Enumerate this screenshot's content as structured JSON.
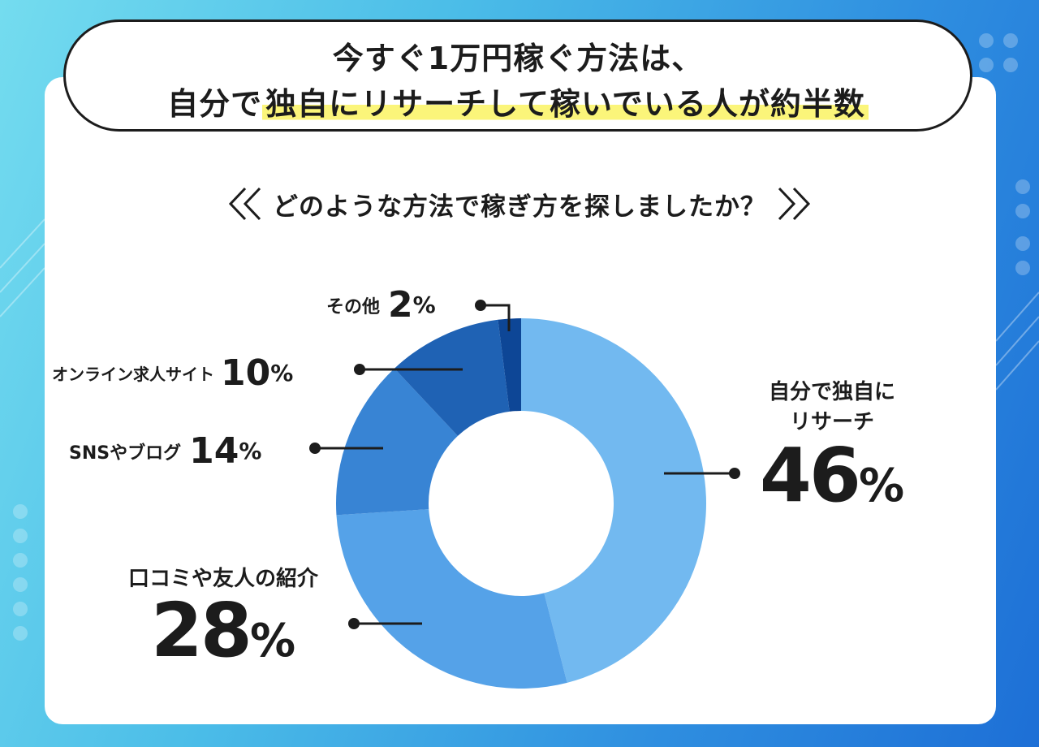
{
  "title": {
    "line1": "今すぐ1万円稼ぐ方法は、",
    "line2_prefix": "自分で",
    "line2_highlight": "独自にリサーチして稼いでいる人が約半数"
  },
  "question": "どのような方法で稼ぎ方を探しましたか？",
  "colors": {
    "accent_highlight": "#fbf57a",
    "text": "#1c1c1c"
  },
  "chart_data": {
    "type": "pie",
    "style": "donut",
    "unit": "%",
    "slices": [
      {
        "label": "自分で独自にリサーチ",
        "value": 46,
        "color": "#72b9f0"
      },
      {
        "label": "口コミや友人の紹介",
        "value": 28,
        "color": "#55a2e8"
      },
      {
        "label": "SNSやブログ",
        "value": 14,
        "color": "#3884d4"
      },
      {
        "label": "オンライン求人サイト",
        "value": 10,
        "color": "#1f62b4"
      },
      {
        "label": "その他",
        "value": 2,
        "color": "#0d4696"
      }
    ],
    "label_lines": {
      "research": [
        "自分で独自に",
        "リサーチ"
      ],
      "word_of_mouth": "口コミや友人の紹介",
      "sns": "SNSやブログ",
      "online": "オンライン求人サイト",
      "other": "その他"
    },
    "values_text": {
      "research": "46",
      "word_of_mouth": "28",
      "sns": "14",
      "online": "10",
      "other": "2"
    },
    "pct_symbol": "%"
  }
}
